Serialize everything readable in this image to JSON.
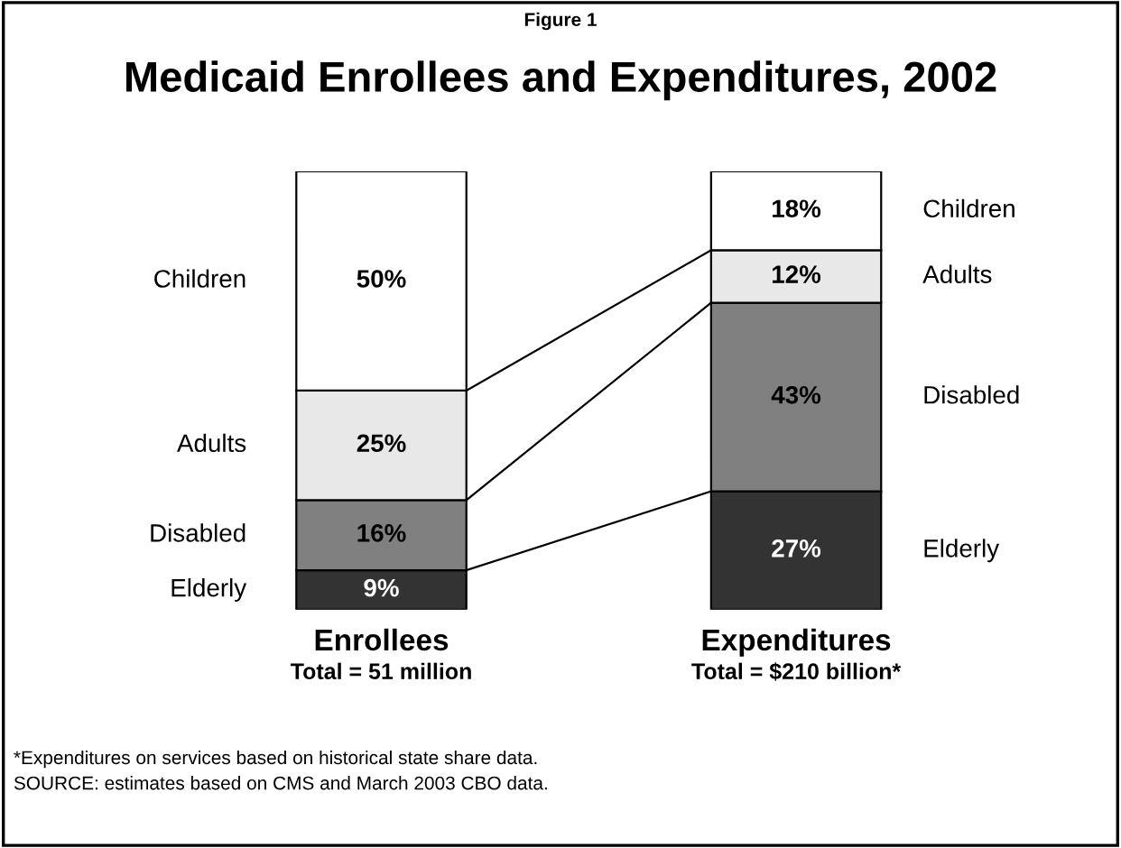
{
  "chart_data": {
    "type": "bar",
    "subtitle": "Figure 1",
    "title": "Medicaid Enrollees and Expenditures, 2002",
    "categories": [
      "Enrollees",
      "Expenditures"
    ],
    "stacked": true,
    "legend": false,
    "series": [
      {
        "name": "Elderly",
        "color": "#333333",
        "values": [
          9,
          27
        ],
        "value_labels": [
          "9%",
          "27%"
        ]
      },
      {
        "name": "Disabled",
        "color": "#808080",
        "values": [
          16,
          43
        ],
        "value_labels": [
          "16%",
          "43%"
        ]
      },
      {
        "name": "Adults",
        "color": "#e8e8e8",
        "values": [
          25,
          12
        ],
        "value_labels": [
          "25%",
          "12%"
        ]
      },
      {
        "name": "Children",
        "color": "#ffffff",
        "values": [
          50,
          18
        ],
        "value_labels": [
          "50%",
          "18%"
        ]
      }
    ],
    "annotations": [
      "Total = 51 million",
      "Total = $210 billion*",
      "*Expenditures on services based on historical state share data.",
      "SOURCE: estimates based on CMS and March 2003 CBO data."
    ]
  }
}
